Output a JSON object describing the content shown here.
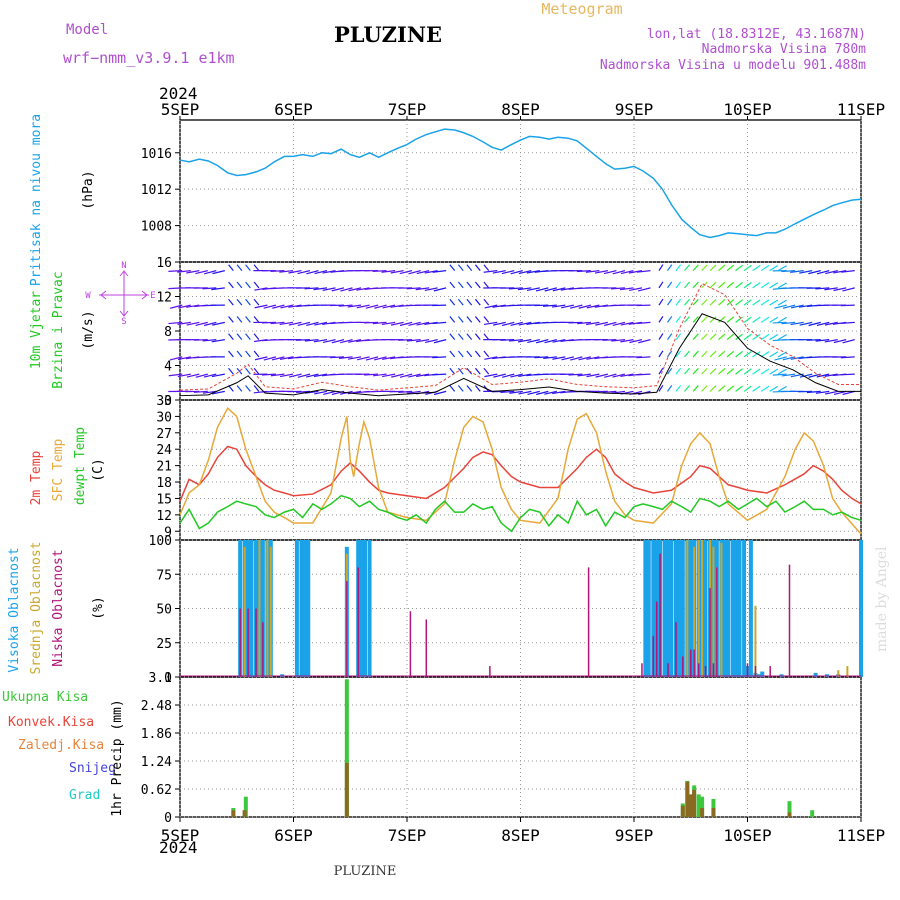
{
  "header": {
    "model_label": "Model",
    "model_value": "wrf−nmm_v3.9.1  e1km",
    "title": "PLUZINE",
    "meteogram_label": "Meteogram",
    "coords": "lon,lat (18.8312E, 43.1687N)",
    "elevation": "Nadmorska Visina 780m",
    "model_elevation": "Nadmorska Visina u modelu 901.488m"
  },
  "footer": {
    "location": "PLUZINE",
    "watermark": "made by Angel"
  },
  "x_axis": {
    "year": "2024",
    "ticks": [
      "5SEP",
      "6SEP",
      "7SEP",
      "8SEP",
      "9SEP",
      "10SEP",
      "11SEP"
    ],
    "range_days": [
      0,
      6
    ]
  },
  "colors": {
    "pressure": "#1aa3e8",
    "t2m": "#e8443a",
    "sfc": "#e8a838",
    "dew": "#22c922",
    "high_cloud": "#1aa3e8",
    "mid_cloud": "#c8a830",
    "low_cloud": "#b0157a",
    "total_precip": "#3cc83c",
    "conv_precip": "#e8443a",
    "wind_rose": "#c040e0"
  },
  "chart_data": [
    {
      "type": "line",
      "panel": "pressure",
      "ylabel_1": "Pritisak na nivou mora",
      "ylabel_2": "(hPa)",
      "yticks": [
        "1016",
        "1012",
        "1008"
      ],
      "ylim": [
        1004.0,
        1019.6
      ],
      "series": [
        {
          "x": [
            0,
            0.08,
            0.17,
            0.25,
            0.33,
            0.42,
            0.5,
            0.58,
            0.67,
            0.75,
            0.83,
            0.92,
            1.0,
            1.08,
            1.17,
            1.25,
            1.33,
            1.42,
            1.5,
            1.58,
            1.67,
            1.75,
            1.83,
            1.92,
            2.0,
            2.08,
            2.17,
            2.25,
            2.33,
            2.42,
            2.5,
            2.58,
            2.67,
            2.75,
            2.83,
            2.92,
            3.0,
            3.08,
            3.17,
            3.25,
            3.33,
            3.42,
            3.5,
            3.58,
            3.67,
            3.75,
            3.83,
            3.92,
            4.0,
            4.08,
            4.17,
            4.25,
            4.33,
            4.42,
            4.5,
            4.58,
            4.67,
            4.75,
            4.83,
            4.92,
            5.0,
            5.08,
            5.17,
            5.25,
            5.33,
            5.42,
            5.5,
            5.58,
            5.67,
            5.75,
            5.83,
            5.92,
            6.0
          ],
          "values": [
            1015.2,
            1015.0,
            1015.3,
            1015.1,
            1014.6,
            1013.8,
            1013.5,
            1013.6,
            1013.9,
            1014.3,
            1015.0,
            1015.6,
            1015.6,
            1015.8,
            1015.6,
            1016.0,
            1015.9,
            1016.4,
            1015.8,
            1015.5,
            1016.0,
            1015.5,
            1016.0,
            1016.5,
            1016.9,
            1017.5,
            1018.0,
            1018.3,
            1018.6,
            1018.5,
            1018.2,
            1017.8,
            1017.2,
            1016.6,
            1016.3,
            1016.9,
            1017.4,
            1017.8,
            1017.7,
            1017.5,
            1017.7,
            1017.6,
            1017.3,
            1016.5,
            1015.6,
            1014.8,
            1014.2,
            1014.3,
            1014.5,
            1014.0,
            1013.2,
            1012.0,
            1010.3,
            1008.7,
            1007.8,
            1007.0,
            1006.7,
            1006.9,
            1007.2,
            1007.1,
            1007.0,
            1006.9,
            1007.2,
            1007.2,
            1007.6,
            1008.2,
            1008.7,
            1009.2,
            1009.7,
            1010.2,
            1010.5,
            1010.8,
            1010.9
          ]
        }
      ]
    },
    {
      "type": "scatter",
      "panel": "wind",
      "ylabel_1": "10m Vjetar",
      "ylabel_2": "Brzina i Pravac",
      "ylabel_3": "(m/s)",
      "compass_n": "N",
      "compass_s": "S",
      "compass_e": "E",
      "compass_w": "W",
      "yticks": [
        "16",
        "12",
        "8",
        "4",
        "0"
      ],
      "ylim": [
        0,
        16
      ],
      "speed_x": [
        0,
        0.25,
        0.5,
        0.6,
        0.75,
        1.0,
        1.25,
        1.5,
        1.75,
        2.0,
        2.25,
        2.5,
        2.75,
        3.0,
        3.25,
        3.5,
        3.75,
        4.0,
        4.2,
        4.4,
        4.6,
        4.8,
        5.0,
        5.2,
        5.4,
        5.6,
        5.8,
        6.0
      ],
      "speed_values": [
        0.5,
        0.6,
        2.0,
        2.8,
        0.8,
        0.6,
        1.2,
        0.8,
        0.5,
        0.7,
        0.9,
        2.5,
        1.0,
        1.2,
        1.5,
        1.0,
        0.8,
        0.7,
        0.9,
        6.0,
        10.0,
        9.0,
        6.0,
        4.5,
        3.5,
        2.0,
        1.0,
        1.0
      ]
    },
    {
      "type": "line",
      "panel": "temperature",
      "ylabel_1": "2m Temp",
      "ylabel_2": "SFC Temp",
      "ylabel_3": "dewpt Temp",
      "ylabel_4": "(C)",
      "yticks": [
        "33",
        "30",
        "27",
        "24",
        "21",
        "18",
        "15",
        "12",
        "9"
      ],
      "ylim": [
        7.4,
        33
      ],
      "series": [
        {
          "name": "2m Temp",
          "x": [
            0,
            0.08,
            0.17,
            0.25,
            0.33,
            0.42,
            0.5,
            0.58,
            0.67,
            0.75,
            0.83,
            0.92,
            1.0,
            1.17,
            1.33,
            1.42,
            1.5,
            1.58,
            1.67,
            1.75,
            1.83,
            2.0,
            2.17,
            2.33,
            2.5,
            2.58,
            2.67,
            2.75,
            2.83,
            2.92,
            3.0,
            3.17,
            3.33,
            3.5,
            3.58,
            3.67,
            3.75,
            3.83,
            3.92,
            4.0,
            4.17,
            4.33,
            4.5,
            4.58,
            4.67,
            4.75,
            4.83,
            4.92,
            5.0,
            5.17,
            5.33,
            5.5,
            5.58,
            5.67,
            5.75,
            5.83,
            5.92,
            6.0
          ],
          "values": [
            14.5,
            18.5,
            17.5,
            19.5,
            22.5,
            24.5,
            24.0,
            21.0,
            19.0,
            17.5,
            16.5,
            16.0,
            15.5,
            15.8,
            17.5,
            20.0,
            21.5,
            20.0,
            18.0,
            16.5,
            16.0,
            15.5,
            15.0,
            17.0,
            20.5,
            22.5,
            23.5,
            23.0,
            21.0,
            19.0,
            18.0,
            17.0,
            17.0,
            20.5,
            22.5,
            24.0,
            22.5,
            19.5,
            18.0,
            17.0,
            16.0,
            16.5,
            19.0,
            21.0,
            20.5,
            19.0,
            17.5,
            17.0,
            16.5,
            16.0,
            17.5,
            19.5,
            21.0,
            20.0,
            18.5,
            16.5,
            15.0,
            14.0
          ]
        },
        {
          "name": "SFC Temp",
          "x": [
            0,
            0.08,
            0.17,
            0.25,
            0.33,
            0.42,
            0.5,
            0.58,
            0.67,
            0.75,
            0.83,
            0.92,
            1.0,
            1.17,
            1.33,
            1.42,
            1.47,
            1.5,
            1.53,
            1.58,
            1.62,
            1.67,
            1.75,
            1.83,
            2.0,
            2.17,
            2.33,
            2.42,
            2.5,
            2.58,
            2.67,
            2.75,
            2.83,
            2.92,
            3.0,
            3.17,
            3.33,
            3.42,
            3.5,
            3.58,
            3.67,
            3.75,
            3.83,
            3.92,
            4.0,
            4.17,
            4.33,
            4.42,
            4.5,
            4.58,
            4.67,
            4.75,
            4.83,
            5.0,
            5.17,
            5.33,
            5.42,
            5.5,
            5.58,
            5.67,
            5.75,
            5.83,
            6.0
          ],
          "values": [
            12.0,
            16.0,
            17.5,
            22.0,
            28.0,
            31.5,
            30.0,
            24.0,
            19.0,
            14.5,
            12.5,
            11.5,
            10.5,
            10.5,
            16.0,
            26.0,
            30.0,
            22.0,
            19.0,
            25.0,
            29.0,
            26.0,
            17.0,
            12.5,
            11.5,
            11.0,
            14.0,
            22.0,
            28.0,
            30.0,
            29.0,
            24.0,
            17.0,
            13.0,
            11.0,
            10.5,
            15.0,
            24.0,
            29.5,
            30.5,
            27.0,
            20.0,
            14.5,
            12.0,
            11.0,
            10.5,
            14.0,
            21.0,
            25.0,
            27.0,
            25.0,
            19.0,
            14.0,
            11.0,
            13.0,
            19.0,
            24.0,
            27.0,
            25.5,
            21.0,
            15.0,
            12.5,
            8.5
          ]
        },
        {
          "name": "dewpt Temp",
          "x": [
            0,
            0.08,
            0.17,
            0.25,
            0.33,
            0.42,
            0.5,
            0.58,
            0.67,
            0.75,
            0.83,
            0.92,
            1.0,
            1.08,
            1.17,
            1.25,
            1.33,
            1.42,
            1.5,
            1.58,
            1.67,
            1.75,
            1.83,
            1.92,
            2.0,
            2.08,
            2.17,
            2.25,
            2.33,
            2.42,
            2.5,
            2.58,
            2.67,
            2.75,
            2.83,
            2.92,
            3.0,
            3.08,
            3.17,
            3.25,
            3.33,
            3.42,
            3.5,
            3.58,
            3.67,
            3.75,
            3.83,
            3.92,
            4.0,
            4.08,
            4.17,
            4.25,
            4.33,
            4.42,
            4.5,
            4.58,
            4.67,
            4.75,
            4.83,
            4.92,
            5.0,
            5.08,
            5.17,
            5.25,
            5.33,
            5.42,
            5.5,
            5.58,
            5.67,
            5.75,
            5.83,
            5.92,
            6.0
          ],
          "values": [
            10.5,
            13.0,
            9.5,
            10.5,
            12.5,
            13.5,
            14.5,
            14.0,
            13.5,
            12.0,
            11.5,
            12.5,
            13.0,
            11.5,
            14.0,
            13.0,
            14.0,
            15.5,
            15.0,
            13.5,
            14.5,
            13.0,
            12.5,
            11.5,
            11.0,
            12.0,
            10.5,
            13.0,
            14.5,
            12.5,
            12.5,
            14.0,
            13.0,
            13.5,
            10.5,
            9.0,
            11.5,
            13.0,
            12.5,
            10.0,
            12.0,
            10.5,
            14.5,
            12.0,
            13.0,
            10.0,
            12.5,
            11.5,
            13.5,
            14.0,
            13.5,
            13.0,
            14.5,
            13.5,
            12.5,
            15.0,
            14.5,
            13.5,
            14.5,
            13.0,
            14.0,
            15.0,
            13.5,
            14.5,
            12.5,
            13.5,
            14.5,
            13.0,
            13.0,
            12.0,
            12.5,
            11.5,
            11.0
          ]
        }
      ]
    },
    {
      "type": "bar",
      "panel": "cloud",
      "ylabel_1": "Visoka Oblacnost",
      "ylabel_2": "Srednja Oblacnost",
      "ylabel_3": "Niska Oblacnost",
      "ylabel_4": "(%)",
      "yticks": [
        "100",
        "75",
        "50",
        "25",
        "0"
      ],
      "ylim": [
        0,
        100
      ],
      "series": [
        {
          "name": "Visoka Oblacnost",
          "x": [
            0.53,
            0.57,
            0.6,
            0.63,
            0.67,
            0.7,
            0.73,
            0.77,
            0.8,
            0.9,
            1.03,
            1.07,
            1.1,
            1.13,
            1.47,
            1.57,
            1.6,
            1.63,
            1.67,
            4.1,
            4.13,
            4.17,
            4.2,
            4.23,
            4.27,
            4.3,
            4.33,
            4.37,
            4.4,
            4.43,
            4.47,
            4.5,
            4.53,
            4.57,
            4.6,
            4.63,
            4.67,
            4.7,
            4.73,
            4.77,
            4.8,
            4.83,
            4.87,
            4.9,
            4.93,
            4.97,
            5.0,
            5.03,
            5.07,
            5.1,
            5.13,
            5.3,
            5.6,
            5.7,
            5.8,
            6.0
          ],
          "values": [
            100,
            100,
            100,
            100,
            100,
            100,
            100,
            100,
            100,
            2,
            100,
            100,
            100,
            100,
            95,
            100,
            100,
            100,
            100,
            100,
            100,
            100,
            100,
            100,
            100,
            100,
            100,
            100,
            100,
            100,
            100,
            100,
            100,
            100,
            100,
            100,
            100,
            100,
            100,
            100,
            100,
            100,
            100,
            100,
            100,
            100,
            8,
            100,
            3,
            2,
            4,
            2,
            3,
            2,
            2,
            100
          ]
        },
        {
          "name": "Srednja Oblacnost",
          "x": [
            0.57,
            0.7,
            0.77,
            0.8,
            1.47,
            4.47,
            4.53,
            4.57,
            4.6,
            4.67,
            4.7,
            4.73,
            4.77,
            5.07,
            5.8,
            5.88
          ],
          "values": [
            95,
            100,
            100,
            95,
            90,
            100,
            95,
            100,
            100,
            100,
            95,
            80,
            98,
            52,
            5,
            8
          ]
        },
        {
          "name": "Niska Oblacnost",
          "x": [
            0.53,
            0.6,
            0.67,
            0.73,
            1.47,
            1.57,
            2.03,
            2.17,
            2.73,
            3.6,
            4.07,
            4.17,
            4.2,
            4.23,
            4.3,
            4.37,
            4.43,
            4.5,
            4.53,
            4.57,
            4.63,
            4.67,
            4.7,
            4.73,
            5.0,
            5.07,
            5.2,
            5.37
          ],
          "values": [
            50,
            50,
            50,
            40,
            70,
            80,
            48,
            42,
            8,
            80,
            10,
            30,
            55,
            90,
            10,
            40,
            15,
            20,
            20,
            10,
            8,
            65,
            10,
            80,
            10,
            8,
            8,
            82
          ]
        }
      ]
    },
    {
      "type": "bar",
      "panel": "precip",
      "ylabel_1": "1hr Precip (mm)",
      "yticks": [
        "3.1",
        "2.48",
        "1.86",
        "1.24",
        "0.62",
        "0"
      ],
      "ylim": [
        0,
        3.1
      ],
      "legend": [
        "Ukupna Kisa",
        "Konvek.Kisa",
        "Zaledj.Kisa",
        "Snijeg",
        "Grad"
      ],
      "series": [
        {
          "name": "Ukupna Kisa",
          "x": [
            0.47,
            0.57,
            0.58,
            1.47,
            4.43,
            4.47,
            4.5,
            4.53,
            4.57,
            4.6,
            4.7,
            5.37,
            5.57
          ],
          "values": [
            0.2,
            0.15,
            0.45,
            3.05,
            0.3,
            0.8,
            0.5,
            0.7,
            0.5,
            0.45,
            0.4,
            0.35,
            0.15
          ]
        },
        {
          "name": "Konvek.Kisa",
          "x": [
            0.47,
            0.57,
            1.47,
            4.43,
            4.47,
            4.5,
            4.53,
            4.6,
            4.7,
            5.37
          ],
          "values": [
            0.15,
            0.15,
            1.2,
            0.25,
            0.78,
            0.5,
            0.6,
            0.2,
            0.2,
            0.1
          ]
        }
      ]
    }
  ]
}
